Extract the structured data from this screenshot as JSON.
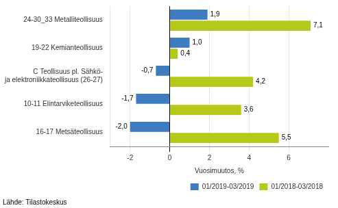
{
  "chart_data": {
    "type": "bar",
    "orientation": "horizontal",
    "categories": [
      "24-30_33 Metalliteollisuus",
      "19-22 Kemianteollisuus",
      "C Teollisuus pl. Sähkö-\nja elektroniikkateollisuus (26-27)",
      "10-11 Elintarviketeollisuus",
      "16-17 Metsäteollisuus"
    ],
    "series": [
      {
        "name": "01/2019-03/2019",
        "color": "#3e7bbf",
        "values": [
          1.9,
          1.0,
          -0.7,
          -1.7,
          -2.0
        ],
        "value_labels": [
          "1,9",
          "1,0",
          "-0,7",
          "-1,7",
          "-2,0"
        ]
      },
      {
        "name": "01/2018-03/2018",
        "color": "#b5c918",
        "values": [
          7.1,
          0.4,
          4.2,
          3.6,
          5.5
        ],
        "value_labels": [
          "7,1",
          "0,4",
          "4,2",
          "3,6",
          "5,5"
        ]
      }
    ],
    "xlabel": "Vuosimuutos, %",
    "xlim": [
      -3,
      8
    ],
    "xticks": [
      -2,
      0,
      2,
      4,
      6
    ],
    "grid": true,
    "legend": "bottom",
    "data_labels": true,
    "annotations": [
      "Lähde: Tilastokeskus"
    ]
  }
}
